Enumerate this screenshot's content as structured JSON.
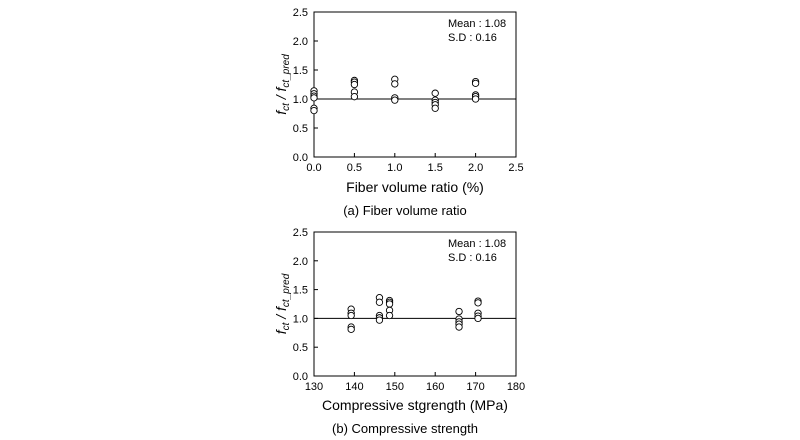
{
  "chart_data": [
    {
      "type": "scatter",
      "caption": "(a)  Fiber volume ratio",
      "xlabel": "Fiber volume ratio (%)",
      "ylabel": {
        "main": "f",
        "num_sub": "ct",
        "sep": " / f",
        "den_sub": "ct_pred"
      },
      "xlim": [
        0.0,
        2.5
      ],
      "ylim": [
        0.0,
        2.5
      ],
      "xticks": [
        "0.0",
        "0.5",
        "1.0",
        "1.5",
        "2.0",
        "2.5"
      ],
      "yticks": [
        "0.0",
        "0.5",
        "1.0",
        "1.5",
        "2.0",
        "2.5"
      ],
      "xtick_values": [
        0.0,
        0.5,
        1.0,
        1.5,
        2.0,
        2.5
      ],
      "ytick_values": [
        0.0,
        0.5,
        1.0,
        1.5,
        2.0,
        2.5
      ],
      "reference_line": 1.0,
      "stats": {
        "mean_label": "Mean : 1.08",
        "sd_label": "S.D    : 0.16"
      },
      "points": [
        [
          0.0,
          1.14
        ],
        [
          0.0,
          1.09
        ],
        [
          0.0,
          1.05
        ],
        [
          0.0,
          1.02
        ],
        [
          0.0,
          0.84
        ],
        [
          0.0,
          0.8
        ],
        [
          0.5,
          1.32
        ],
        [
          0.5,
          1.29
        ],
        [
          0.5,
          1.25
        ],
        [
          0.5,
          1.12
        ],
        [
          0.5,
          1.04
        ],
        [
          1.0,
          1.34
        ],
        [
          1.0,
          1.26
        ],
        [
          1.0,
          1.02
        ],
        [
          1.0,
          0.98
        ],
        [
          1.5,
          1.1
        ],
        [
          1.5,
          0.98
        ],
        [
          1.5,
          0.94
        ],
        [
          1.5,
          0.9
        ],
        [
          1.5,
          0.84
        ],
        [
          2.0,
          1.3
        ],
        [
          2.0,
          1.27
        ],
        [
          2.0,
          1.07
        ],
        [
          2.0,
          1.04
        ],
        [
          2.0,
          1.0
        ]
      ]
    },
    {
      "type": "scatter",
      "caption": "(b)  Compressive strength",
      "xlabel": "Compressive stgrength (MPa)",
      "ylabel": {
        "main": "f",
        "num_sub": "ct",
        "sep": " / f",
        "den_sub": "ct_pred"
      },
      "xlim": [
        130,
        180
      ],
      "ylim": [
        0.0,
        2.5
      ],
      "xticks": [
        "130",
        "140",
        "150",
        "160",
        "170",
        "180"
      ],
      "yticks": [
        "0.0",
        "0.5",
        "1.0",
        "1.5",
        "2.0",
        "2.5"
      ],
      "xtick_values": [
        130,
        140,
        150,
        160,
        170,
        180
      ],
      "ytick_values": [
        0.0,
        0.5,
        1.0,
        1.5,
        2.0,
        2.5
      ],
      "reference_line": 1.0,
      "stats": {
        "mean_label": "Mean : 1.08",
        "sd_label": "S.D    : 0.16"
      },
      "points": [
        [
          139.2,
          1.16
        ],
        [
          139.2,
          1.09
        ],
        [
          139.2,
          1.05
        ],
        [
          139.2,
          0.85
        ],
        [
          139.2,
          0.81
        ],
        [
          146.2,
          1.36
        ],
        [
          146.2,
          1.28
        ],
        [
          146.2,
          1.05
        ],
        [
          146.2,
          1.01
        ],
        [
          146.2,
          0.97
        ],
        [
          148.7,
          1.31
        ],
        [
          148.7,
          1.28
        ],
        [
          148.7,
          1.25
        ],
        [
          148.7,
          1.14
        ],
        [
          148.7,
          1.05
        ],
        [
          165.9,
          1.12
        ],
        [
          165.9,
          0.99
        ],
        [
          165.9,
          0.94
        ],
        [
          165.9,
          0.9
        ],
        [
          165.9,
          0.85
        ],
        [
          170.6,
          1.3
        ],
        [
          170.6,
          1.27
        ],
        [
          170.6,
          1.09
        ],
        [
          170.6,
          1.04
        ],
        [
          170.6,
          1.0
        ]
      ]
    }
  ]
}
